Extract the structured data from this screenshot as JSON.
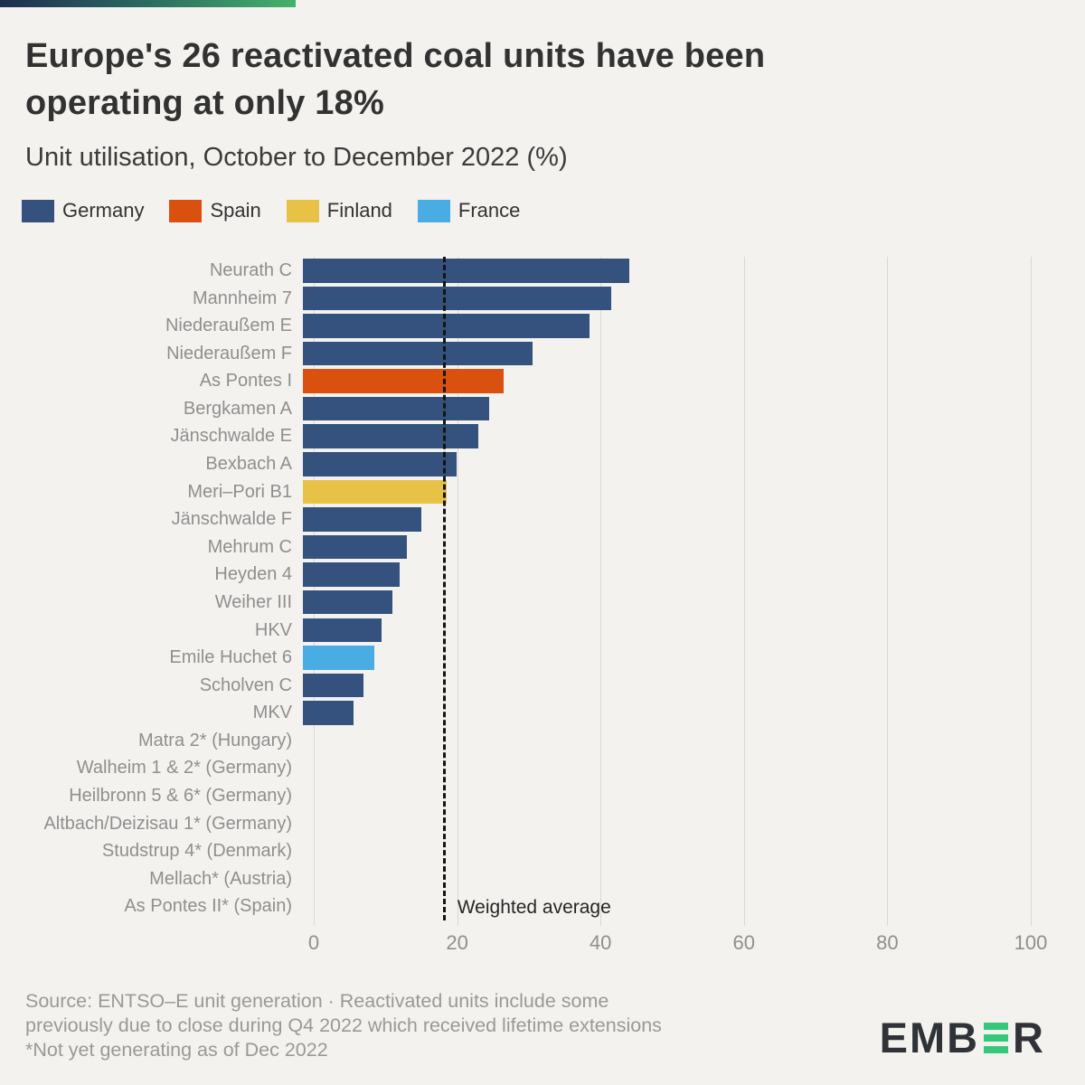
{
  "header": {
    "title_lines": [
      "Europe's 26 reactivated coal units have been",
      "operating at only 18%"
    ],
    "subtitle": "Unit utilisation, October to December 2022 (%)"
  },
  "legend": [
    {
      "label": "Germany",
      "color": "#34527D"
    },
    {
      "label": "Spain",
      "color": "#D9500F"
    },
    {
      "label": "Finland",
      "color": "#E7C247"
    },
    {
      "label": "France",
      "color": "#49ACE3"
    }
  ],
  "chart_data": {
    "type": "bar",
    "orientation": "horizontal",
    "title": "Europe's 26 reactivated coal units have been operating at only 18%",
    "subtitle": "Unit utilisation, October to December 2022 (%)",
    "xlabel": "",
    "ylabel": "",
    "xlim": [
      0,
      100
    ],
    "x_ticks": [
      0,
      20,
      40,
      60,
      80,
      100
    ],
    "grid": true,
    "weighted_average": 18,
    "annotation": "Weighted average",
    "categories": [
      "Neurath C",
      "Mannheim 7",
      "Niederaußem E",
      "Niederaußem F",
      "As Pontes I",
      "Bergkamen A",
      "Jänschwalde E",
      "Bexbach A",
      "Meri–Pori B1",
      "Jänschwalde F",
      "Mehrum C",
      "Heyden 4",
      "Weiher III",
      "HKV",
      "Emile Huchet 6",
      "Scholven C",
      "MKV",
      "Matra 2* (Hungary)",
      "Walheim 1 & 2* (Germany)",
      "Heilbronn 5 & 6* (Germany)",
      "Altbach/Deizisau 1* (Germany)",
      "Studstrup 4* (Denmark)",
      "Mellach* (Austria)",
      "As Pontes II* (Spain)"
    ],
    "values": [
      45.5,
      43,
      40,
      32,
      28,
      26,
      24.5,
      21.5,
      20,
      16.5,
      14.5,
      13.5,
      12.5,
      11,
      10,
      8.5,
      7,
      0,
      0,
      0,
      0,
      0,
      0,
      0
    ],
    "countries": [
      "germany",
      "germany",
      "germany",
      "germany",
      "spain",
      "germany",
      "germany",
      "germany",
      "finland",
      "germany",
      "germany",
      "germany",
      "germany",
      "germany",
      "france",
      "germany",
      "germany",
      "hungary",
      "germany",
      "germany",
      "germany",
      "denmark",
      "austria",
      "spain"
    ],
    "country_colors": {
      "germany": "#34527D",
      "spain": "#D9500F",
      "finland": "#E7C247",
      "france": "#49ACE3",
      "hungary": "#34527D",
      "denmark": "#34527D",
      "austria": "#34527D"
    }
  },
  "footer": {
    "lines": [
      "Source: ENTSO–E unit generation · Reactivated units include some",
      "previously due to close during Q4 2022 which received lifetime extensions",
      "*Not yet generating as of Dec 2022"
    ],
    "logo_prefix": "EMB",
    "logo_suffix": "R",
    "logo_green": "#35C87A"
  },
  "colors": {
    "background": "#f3f2ef",
    "gradient": [
      "#1d2e4e",
      "#2e7163",
      "#44b26b"
    ],
    "gridline": "#d9d8d4",
    "label_gray": "#8f8f8f",
    "title": "#323232",
    "dashed_line": "#141414"
  }
}
